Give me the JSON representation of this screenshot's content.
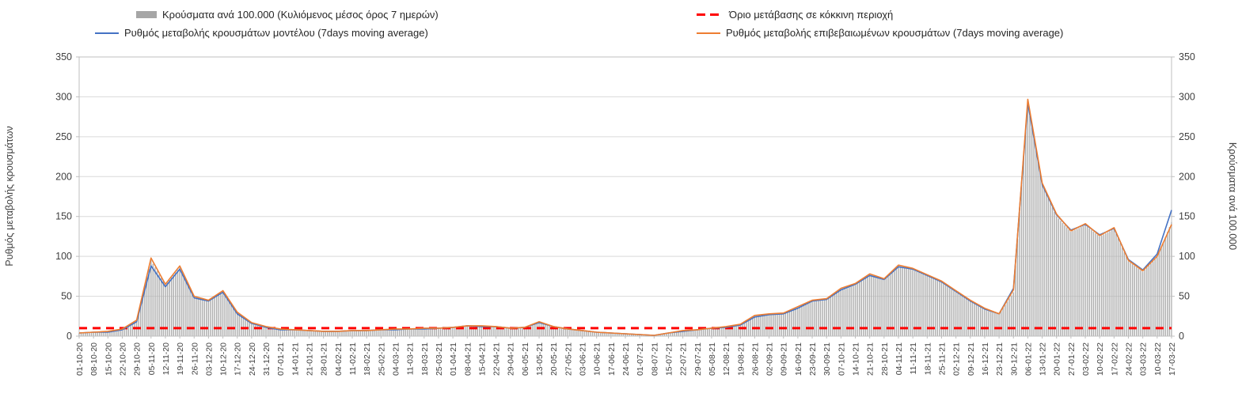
{
  "legend": {
    "bars": "Κρούσματα ανά 100.000 (Κυλιόμενος μέσος όρος 7 ημερών)",
    "threshold": "Όριο μετάβασης σε κόκκινη περιοχή",
    "model": "Ρυθμός μεταβολής κρουσμάτων μοντέλου (7days moving average)",
    "confirmed": "Ρυθμός μεταβολής επιβεβαιωμένων κρουσμάτων (7days moving average)"
  },
  "axes": {
    "left_label": "Ρυθμός μεταβολής κρουσμάτων",
    "right_label": "Κρούσματα ανά 100.000",
    "y_ticks": [
      0,
      50,
      100,
      150,
      200,
      250,
      300,
      350
    ]
  },
  "colors": {
    "bars": "#b0b0b0",
    "model": "#4472c4",
    "confirmed": "#ed7d31",
    "threshold": "#ff0000",
    "grid": "#d9d9d9",
    "frame": "#bfbfbf",
    "tick_text": "#404040"
  },
  "chart_data": {
    "type": "line",
    "title": "",
    "xlabel": "",
    "ylabel_left": "Ρυθμός μεταβολής κρουσμάτων",
    "ylabel_right": "Κρούσματα ανά 100.000",
    "ylim": [
      0,
      350
    ],
    "grid": "horizontal",
    "legend_position": "top",
    "threshold_value": 10,
    "threshold_label": "Όριο μετάβασης σε κόκκινη περιοχή",
    "categories": [
      "01-10-20",
      "08-10-20",
      "15-10-20",
      "22-10-20",
      "29-10-20",
      "05-11-20",
      "12-11-20",
      "19-11-20",
      "26-11-20",
      "03-12-20",
      "10-12-20",
      "17-12-20",
      "24-12-20",
      "31-12-20",
      "07-01-21",
      "14-01-21",
      "21-01-21",
      "28-01-21",
      "04-02-21",
      "11-02-21",
      "18-02-21",
      "25-02-21",
      "04-03-21",
      "11-03-21",
      "18-03-21",
      "25-03-21",
      "01-04-21",
      "08-04-21",
      "15-04-21",
      "22-04-21",
      "29-04-21",
      "06-05-21",
      "13-05-21",
      "20-05-21",
      "27-05-21",
      "03-06-21",
      "10-06-21",
      "17-06-21",
      "24-06-21",
      "01-07-21",
      "08-07-21",
      "15-07-21",
      "22-07-21",
      "29-07-21",
      "05-08-21",
      "12-08-21",
      "19-08-21",
      "26-08-21",
      "02-09-21",
      "09-09-21",
      "16-09-21",
      "23-09-21",
      "30-09-21",
      "07-10-21",
      "14-10-21",
      "21-10-21",
      "28-10-21",
      "04-11-21",
      "11-11-21",
      "18-11-21",
      "25-11-21",
      "02-12-21",
      "09-12-21",
      "16-12-21",
      "23-12-21",
      "30-12-21",
      "06-01-22",
      "13-01-22",
      "20-01-22",
      "27-01-22",
      "03-02-22",
      "10-02-22",
      "17-02-22",
      "24-02-22",
      "03-03-22",
      "10-03-22",
      "17-03-22"
    ],
    "series": [
      {
        "name": "Κρούσματα ανά 100.000 (Κυλιόμενος μέσος όρος 7 ημερών)",
        "type": "bar",
        "color": "#b0b0b0",
        "axis": "right",
        "values": [
          4,
          5,
          6,
          9,
          20,
          95,
          64,
          86,
          49,
          45,
          56,
          29,
          17,
          12,
          9,
          8,
          7,
          6,
          6,
          7,
          7,
          8,
          9,
          9,
          10,
          10,
          11,
          13,
          13,
          12,
          10,
          11,
          17,
          12,
          9,
          7,
          5,
          4,
          3,
          2,
          1,
          4,
          7,
          8,
          10,
          12,
          15,
          25,
          27,
          29,
          36,
          45,
          46,
          59,
          65,
          77,
          71,
          88,
          84,
          76,
          68,
          56,
          45,
          34,
          28,
          55,
          290,
          190,
          150,
          131,
          139,
          125,
          134,
          94,
          81,
          99,
          143
        ]
      },
      {
        "name": "Ρυθμός μεταβολής κρουσμάτων μοντέλου (7days moving average)",
        "type": "line",
        "color": "#4472c4",
        "axis": "left",
        "values": [
          4,
          5,
          5,
          8,
          18,
          88,
          62,
          84,
          48,
          44,
          55,
          28,
          16,
          11,
          8,
          8,
          7,
          6,
          6,
          7,
          7,
          8,
          8,
          9,
          9,
          10,
          11,
          13,
          12,
          12,
          10,
          11,
          17,
          12,
          9,
          7,
          5,
          4,
          3,
          2,
          1,
          4,
          6,
          8,
          10,
          11,
          14,
          24,
          27,
          28,
          35,
          44,
          46,
          58,
          65,
          76,
          71,
          87,
          84,
          76,
          68,
          56,
          44,
          34,
          28,
          60,
          292,
          190,
          152,
          133,
          140,
          127,
          135,
          96,
          83,
          103,
          158
        ]
      },
      {
        "name": "Ρυθμός μεταβολής επιβεβαιωμένων κρουσμάτων (7days moving average)",
        "type": "line",
        "color": "#ed7d31",
        "axis": "left",
        "values": [
          4,
          5,
          6,
          9,
          20,
          98,
          65,
          88,
          50,
          45,
          57,
          30,
          17,
          12,
          9,
          8,
          7,
          6,
          6,
          7,
          7,
          8,
          9,
          9,
          10,
          10,
          11,
          13,
          13,
          12,
          10,
          11,
          18,
          12,
          9,
          7,
          5,
          4,
          3,
          2,
          1,
          4,
          7,
          8,
          10,
          12,
          15,
          26,
          28,
          29,
          37,
          45,
          47,
          60,
          66,
          78,
          72,
          89,
          85,
          77,
          69,
          57,
          45,
          35,
          28,
          58,
          297,
          192,
          153,
          132,
          141,
          126,
          136,
          95,
          82,
          100,
          140
        ]
      }
    ]
  }
}
